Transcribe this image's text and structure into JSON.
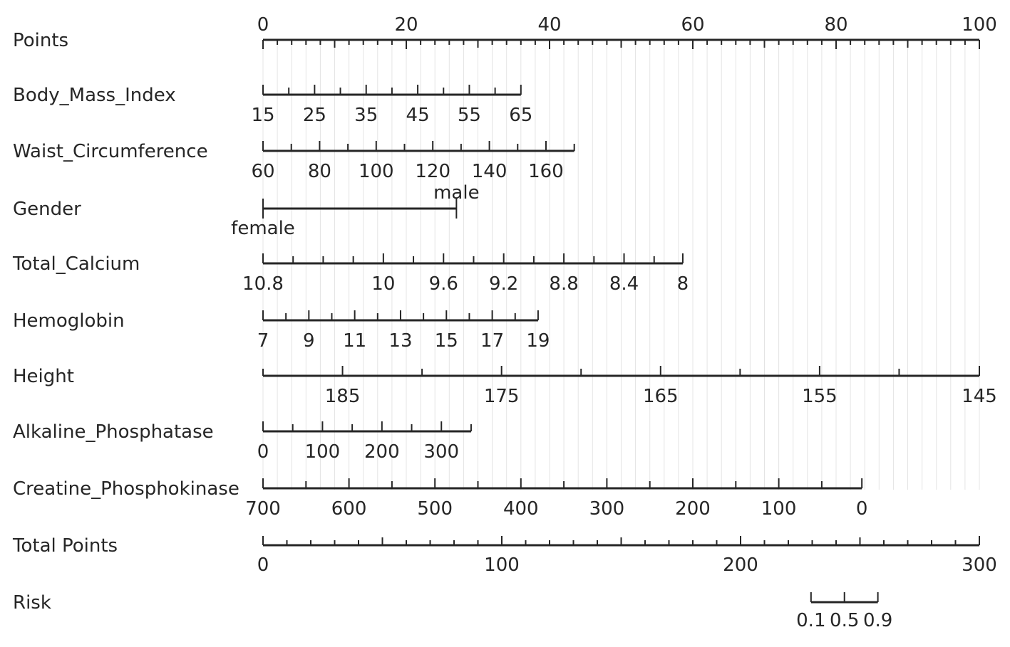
{
  "chart_data": {
    "type": "nomogram",
    "title": "",
    "rows": [
      {
        "label": "Points",
        "scale": "points",
        "min": 0,
        "max": 100,
        "tick_labels": [
          "0",
          "20",
          "40",
          "60",
          "80",
          "100"
        ],
        "tick_values": [
          0,
          20,
          40,
          60,
          80,
          100
        ],
        "minor_step": 2,
        "medium_step": 10,
        "label_side": "above"
      },
      {
        "label": "Body_Mass_Index",
        "start": 15,
        "end": 65,
        "label_side": "below",
        "tick_labels": [
          "15",
          "25",
          "35",
          "45",
          "55",
          "65"
        ],
        "tick_points": [
          0,
          7.2,
          14.4,
          21.6,
          28.8,
          36
        ],
        "minor_points": [
          3.6,
          10.8,
          18,
          25.2,
          32.4
        ]
      },
      {
        "label": "Waist_Circumference",
        "start": 60,
        "end": 170,
        "label_side": "below",
        "tick_labels": [
          "60",
          "80",
          "100",
          "120",
          "140",
          "160"
        ],
        "tick_points": [
          0,
          7.9,
          15.8,
          23.7,
          31.6,
          39.5
        ],
        "minor_points": [
          3.95,
          11.85,
          19.75,
          27.65,
          35.55,
          43.45
        ]
      },
      {
        "label": "Gender",
        "label_side": "split",
        "categories": [
          "female",
          "male"
        ],
        "category_points": [
          0,
          27
        ],
        "category_label_sides": [
          "below",
          "above"
        ]
      },
      {
        "label": "Total_Calcium",
        "start": 10.8,
        "end": 8,
        "label_side": "below",
        "tick_labels": [
          "10.8",
          "10",
          "9.6",
          "9.2",
          "8.8",
          "8.4",
          "8"
        ],
        "tick_points": [
          0,
          16.8,
          25.2,
          33.6,
          42,
          50.4,
          58.6
        ],
        "minor_points": [
          4.2,
          8.4,
          12.6,
          21,
          29.4,
          37.8,
          46.2,
          54.6
        ]
      },
      {
        "label": "Hemoglobin",
        "start": 7,
        "end": 19,
        "label_side": "below",
        "tick_labels": [
          "7",
          "9",
          "11",
          "13",
          "15",
          "17",
          "19"
        ],
        "tick_points": [
          0,
          6.4,
          12.8,
          19.2,
          25.6,
          32,
          38.4
        ],
        "minor_points": [
          3.2,
          9.6,
          16,
          22.4,
          28.8,
          35.2
        ]
      },
      {
        "label": "Height",
        "start": 190,
        "end": 145,
        "label_side": "below",
        "tick_labels": [
          "185",
          "175",
          "165",
          "155",
          "145"
        ],
        "tick_points": [
          11.1,
          33.3,
          55.5,
          77.7,
          100
        ],
        "minor_points": [
          0,
          22.2,
          44.4,
          66.6,
          88.8
        ]
      },
      {
        "label": "Alkaline_Phosphatase",
        "start": 0,
        "end": 350,
        "label_side": "below",
        "tick_labels": [
          "0",
          "100",
          "200",
          "300"
        ],
        "tick_points": [
          0,
          8.3,
          16.6,
          24.9
        ],
        "minor_points": [
          4.15,
          12.45,
          20.75,
          29.05
        ]
      },
      {
        "label": "Creatine_Phosphokinase",
        "start": 700,
        "end": 0,
        "label_side": "below",
        "tick_labels": [
          "700",
          "600",
          "500",
          "400",
          "300",
          "200",
          "100",
          "0"
        ],
        "tick_points": [
          0,
          12,
          24,
          36,
          48,
          60,
          72,
          83.6
        ],
        "minor_points": [
          6,
          18,
          30,
          42,
          54,
          66,
          78
        ]
      },
      {
        "label": "Total Points",
        "scale": "total",
        "min": 0,
        "max": 300,
        "label_side": "below",
        "tick_labels": [
          "0",
          "100",
          "200",
          "300"
        ],
        "tick_values": [
          0,
          100,
          200,
          300
        ],
        "minor_step": 10,
        "medium_step": 50
      },
      {
        "label": "Risk",
        "scale": "total",
        "label_side": "below",
        "compact_labels": true,
        "tick_labels": [
          "0.1",
          "0.5",
          "0.9"
        ],
        "tick_values": [
          229.5,
          243.5,
          257.5
        ],
        "minor_values": []
      }
    ],
    "grid": true,
    "grid_step_points": 2
  }
}
